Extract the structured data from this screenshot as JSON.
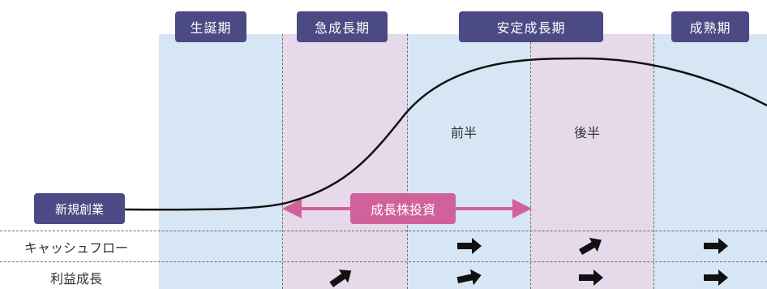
{
  "phases": {
    "birth": "生誕期",
    "rapid_growth": "急成長期",
    "stable_growth": "安定成長期",
    "maturity": "成熟期"
  },
  "sub_phases": {
    "first_half": "前半",
    "second_half": "後半"
  },
  "start_label": "新規創業",
  "investment_label": "成長株投資",
  "rows": {
    "cash_flow": "キャッシュフロー",
    "profit_growth": "利益成長"
  },
  "row_arrows": {
    "cash_flow": [
      "right",
      "up-right",
      "right"
    ],
    "profit_growth": [
      "up-right",
      "right",
      "right",
      "right"
    ]
  },
  "colors": {
    "blue_band": "#d6e6f4",
    "pink_band": "#e5d9ea",
    "phase_box": "#4b4a84",
    "investment": "#d0619a"
  }
}
